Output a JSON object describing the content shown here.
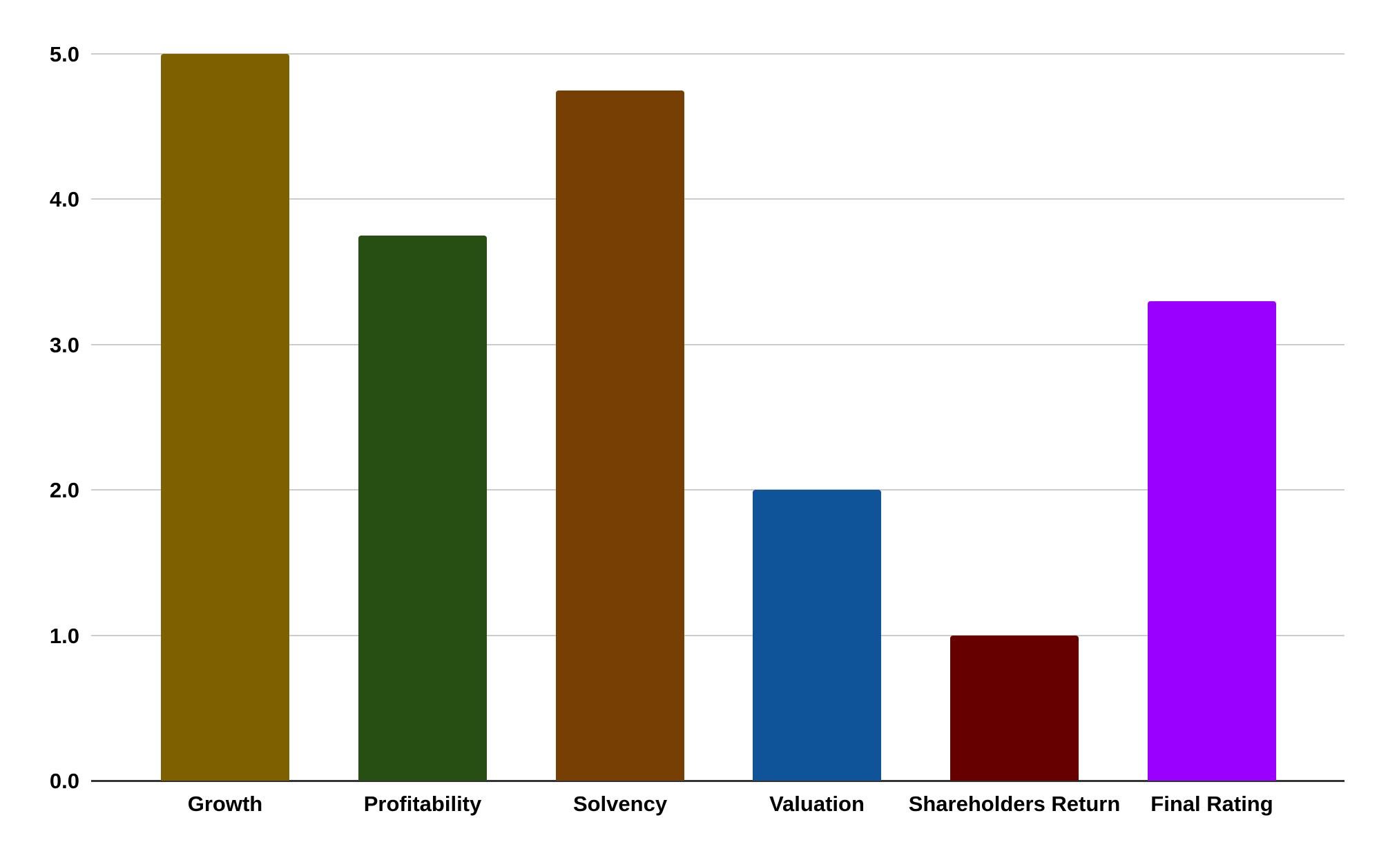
{
  "chart_data": {
    "type": "bar",
    "title": "",
    "categories": [
      "Growth",
      "Profitability",
      "Solvency",
      "Valuation",
      "Shareholders Return",
      "Final Rating"
    ],
    "values": [
      5.0,
      3.75,
      4.75,
      2.0,
      1.0,
      3.3
    ],
    "bar_colors": [
      "#7F6000",
      "#274E13",
      "#783F04",
      "#0F5499",
      "#660000",
      "#9900FF"
    ],
    "xlabel": "",
    "ylabel": "",
    "ylim": [
      0,
      5
    ],
    "ytick_step": 1,
    "ytick_labels": [
      "0.0",
      "1.0",
      "2.0",
      "3.0",
      "4.0",
      "5.0"
    ],
    "grid": "horizontal gridlines on",
    "legend_position": "none"
  },
  "style": {
    "background_color": "#FFFFFF",
    "gridline_color": "#CCCCCC",
    "axis_line_color": "#333333",
    "label_color": "#000000"
  }
}
